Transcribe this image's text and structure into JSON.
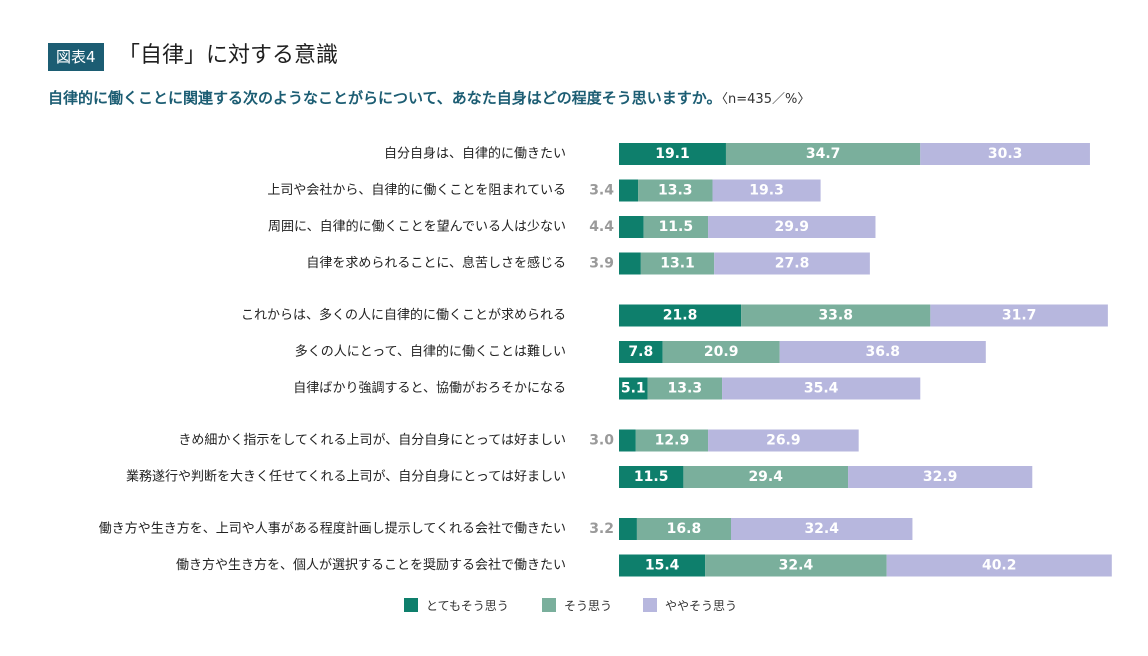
{
  "figure_label": "図表4",
  "title": "「自律」に対する意識",
  "subtitle": "自律的に働くことに関連する次のようなことがらについて、あなた自身はどの程度そう思いますか。",
  "subtitle_note": "〈n=435／%〉",
  "colors": {
    "strong": "#0e7f6c",
    "agree": "#7aaf9c",
    "somewhat": "#b7b7de",
    "outside_label": "#9a9a9a"
  },
  "chart_data": {
    "type": "bar",
    "orientation": "horizontal",
    "stacked": true,
    "unit": "%",
    "series_names": [
      "とてもそう思う",
      "そう思う",
      "ややそう思う"
    ],
    "items": [
      {
        "label": "自分自身は、自律的に働きたい",
        "values": [
          19.1,
          34.7,
          30.3
        ],
        "group": 0
      },
      {
        "label": "上司や会社から、自律的に働くことを阻まれている",
        "values": [
          3.4,
          13.3,
          19.3
        ],
        "group": 0
      },
      {
        "label": "周囲に、自律的に働くことを望んでいる人は少ない",
        "values": [
          4.4,
          11.5,
          29.9
        ],
        "group": 0
      },
      {
        "label": "自律を求められることに、息苦しさを感じる",
        "values": [
          3.9,
          13.1,
          27.8
        ],
        "group": 0
      },
      {
        "label": "これからは、多くの人に自律的に働くことが求められる",
        "values": [
          21.8,
          33.8,
          31.7
        ],
        "group": 1
      },
      {
        "label": "多くの人にとって、自律的に働くことは難しい",
        "values": [
          7.8,
          20.9,
          36.8
        ],
        "group": 1
      },
      {
        "label": "自律ばかり強調すると、協働がおろそかになる",
        "values": [
          5.1,
          13.3,
          35.4
        ],
        "group": 1
      },
      {
        "label": "きめ細かく指示をしてくれる上司が、自分自身にとっては好ましい",
        "values": [
          3.0,
          12.9,
          26.9
        ],
        "group": 2
      },
      {
        "label": "業務遂行や判断を大きく任せてくれる上司が、自分自身にとっては好ましい",
        "values": [
          11.5,
          29.4,
          32.9
        ],
        "group": 2
      },
      {
        "label": "働き方や生き方を、上司や人事がある程度計画し提示してくれる会社で働きたい",
        "values": [
          3.2,
          16.8,
          32.4
        ],
        "group": 3
      },
      {
        "label": "働き方や生き方を、個人が選択することを奨励する会社で働きたい",
        "values": [
          15.4,
          32.4,
          40.2
        ],
        "group": 3
      }
    ],
    "legend_position": "bottom",
    "grid": false
  },
  "legend": [
    {
      "label": "とてもそう思う",
      "color": "#0e7f6c"
    },
    {
      "label": "そう思う",
      "color": "#7aaf9c"
    },
    {
      "label": "ややそう思う",
      "color": "#b7b7de"
    }
  ]
}
